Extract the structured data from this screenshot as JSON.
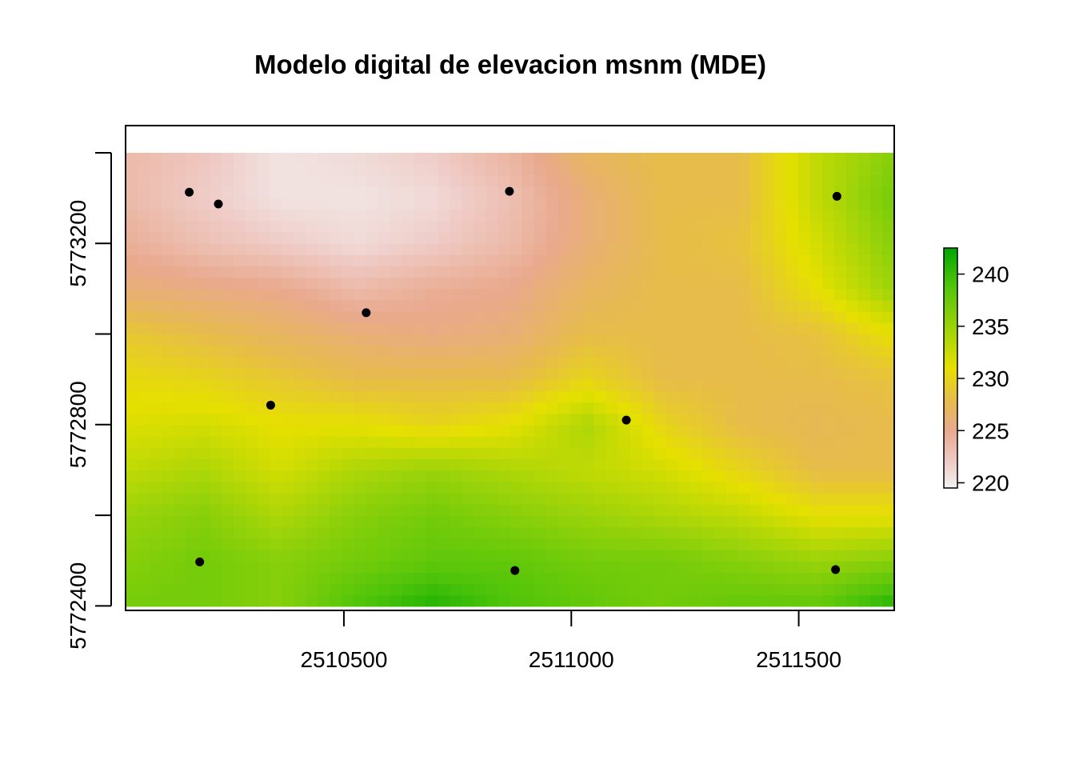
{
  "chart_data": {
    "type": "heatmap",
    "title": "Modelo digital de elevacion msnm (MDE)",
    "xlabel": "",
    "ylabel": "",
    "x_ticks": [
      2510500,
      2511000,
      2511500
    ],
    "x_tick_labels": [
      "2510500",
      "2511000",
      "2511500"
    ],
    "y_ticks": [
      5772400,
      5772600,
      5772800,
      5773000,
      5773200,
      5773400
    ],
    "y_tick_labels": [
      "5772400",
      "",
      "5772800",
      "",
      "5773200",
      ""
    ],
    "xlim": [
      2510020,
      2511710
    ],
    "ylim": [
      5772390,
      5773460
    ],
    "raster_extent": {
      "x": [
        2510020,
        2511710
      ],
      "y": [
        5772398,
        5773400
      ]
    },
    "colorbar": {
      "min": 219.5,
      "max": 242.5,
      "ticks": [
        220,
        225,
        230,
        235,
        240
      ],
      "tick_labels": [
        "220",
        "225",
        "230",
        "235",
        "240"
      ],
      "stops": [
        {
          "value": 219.5,
          "color": "#f2f2f2"
        },
        {
          "value": 222,
          "color": "#efcbc6"
        },
        {
          "value": 225,
          "color": "#e9a98d"
        },
        {
          "value": 228,
          "color": "#e7bc4a"
        },
        {
          "value": 231,
          "color": "#e6e000"
        },
        {
          "value": 235,
          "color": "#9ad30a"
        },
        {
          "value": 239,
          "color": "#4ec40a"
        },
        {
          "value": 242.5,
          "color": "#00a600"
        }
      ]
    },
    "points": [
      {
        "x": 2510160,
        "y": 5773313
      },
      {
        "x": 2510224,
        "y": 5773287
      },
      {
        "x": 2510864,
        "y": 5773315
      },
      {
        "x": 2511584,
        "y": 5773304
      },
      {
        "x": 2510549,
        "y": 5773047
      },
      {
        "x": 2510339,
        "y": 5772843
      },
      {
        "x": 2511121,
        "y": 5772810
      },
      {
        "x": 2510183,
        "y": 5772497
      },
      {
        "x": 2510876,
        "y": 5772478
      },
      {
        "x": 2511581,
        "y": 5772480
      }
    ],
    "elevation_grid": {
      "x": [
        2510020,
        2510190,
        2510360,
        2510530,
        2510700,
        2510870,
        2511040,
        2511210,
        2511380,
        2511550,
        2511710
      ],
      "y": [
        5773400,
        5773300,
        5773200,
        5773100,
        5773000,
        5772900,
        5772800,
        5772700,
        5772600,
        5772500,
        5772398
      ],
      "z": [
        [
          223.5,
          222.5,
          220.5,
          221,
          222,
          224,
          227,
          228,
          228,
          233,
          236
        ],
        [
          223.5,
          222,
          220.5,
          220.5,
          221,
          223,
          226,
          228,
          228,
          233,
          237
        ],
        [
          224.5,
          223,
          222,
          221,
          222,
          223.5,
          226,
          228,
          228.5,
          232,
          236
        ],
        [
          226,
          225.5,
          225,
          223.5,
          224.5,
          225,
          227,
          228,
          228,
          231,
          235
        ],
        [
          229,
          228,
          227,
          226,
          225.5,
          226,
          228,
          228,
          228,
          228.5,
          231
        ],
        [
          230.5,
          230,
          229,
          228,
          228,
          228,
          230,
          228,
          228,
          228,
          228.5
        ],
        [
          231.5,
          232,
          231,
          231,
          230,
          231,
          234,
          230,
          228,
          227.5,
          228
        ],
        [
          233,
          234,
          232,
          234,
          235,
          234,
          233,
          232,
          230,
          228,
          228
        ],
        [
          235,
          236,
          234,
          236,
          237,
          236,
          235,
          234,
          233,
          231,
          231
        ],
        [
          236,
          237,
          236,
          237,
          238,
          238,
          237,
          237,
          236,
          235,
          236
        ],
        [
          237,
          237,
          236,
          239,
          241,
          239,
          238,
          237,
          238,
          238,
          241
        ]
      ]
    }
  }
}
